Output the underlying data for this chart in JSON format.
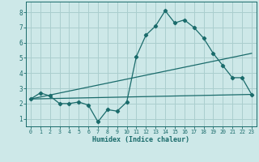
{
  "title": "",
  "xlabel": "Humidex (Indice chaleur)",
  "background_color": "#cde8e8",
  "grid_color": "#aacece",
  "line_color": "#1a6b6b",
  "xlim": [
    -0.5,
    23.5
  ],
  "ylim": [
    0.5,
    8.7
  ],
  "xticks": [
    0,
    1,
    2,
    3,
    4,
    5,
    6,
    7,
    8,
    9,
    10,
    11,
    12,
    13,
    14,
    15,
    16,
    17,
    18,
    19,
    20,
    21,
    22,
    23
  ],
  "yticks": [
    1,
    2,
    3,
    4,
    5,
    6,
    7,
    8
  ],
  "series1_x": [
    0,
    1,
    2,
    3,
    4,
    5,
    6,
    7,
    8,
    9,
    10,
    11,
    12,
    13,
    14,
    15,
    16,
    17,
    18,
    19,
    20,
    21,
    22,
    23
  ],
  "series1_y": [
    2.3,
    2.7,
    2.5,
    2.0,
    2.0,
    2.1,
    1.9,
    0.8,
    1.6,
    1.5,
    2.1,
    5.1,
    6.5,
    7.1,
    8.1,
    7.3,
    7.5,
    7.0,
    6.3,
    5.3,
    4.5,
    3.7,
    3.7,
    2.6
  ],
  "series2_x": [
    0,
    23
  ],
  "series2_y": [
    2.3,
    5.3
  ],
  "series3_x": [
    0,
    23
  ],
  "series3_y": [
    2.3,
    2.6
  ]
}
